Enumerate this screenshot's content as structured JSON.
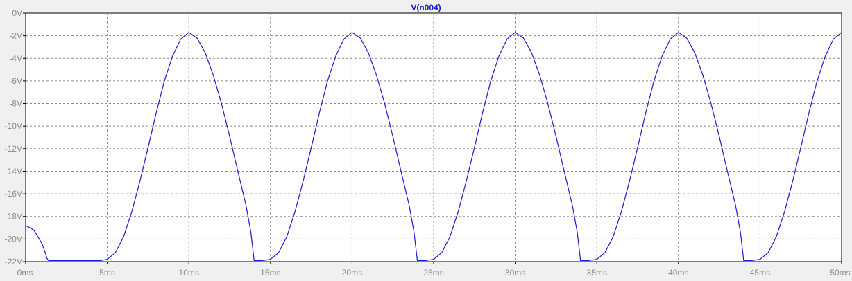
{
  "chart_data": {
    "type": "line",
    "title": "V(n004)",
    "xlabel": "",
    "ylabel": "",
    "xlim": [
      0,
      50
    ],
    "ylim": [
      -22,
      0
    ],
    "grid": true,
    "x_ticks": [
      "0ms",
      "5ms",
      "10ms",
      "15ms",
      "20ms",
      "25ms",
      "30ms",
      "35ms",
      "40ms",
      "45ms",
      "50ms"
    ],
    "y_ticks": [
      "0V",
      "-2V",
      "-4V",
      "-6V",
      "-8V",
      "-10V",
      "-12V",
      "-14V",
      "-16V",
      "-18V",
      "-20V",
      "-22V"
    ],
    "colors": {
      "series": "#1a1ad0",
      "background": "#ffffff",
      "grid": "#8a8a8a"
    },
    "series": [
      {
        "name": "V(n004)",
        "x": [
          0,
          0.5,
          1.0,
          1.2,
          1.3,
          1.4,
          4.6,
          5.0,
          5.5,
          6.0,
          6.5,
          7.0,
          7.5,
          8.0,
          8.5,
          9.0,
          9.5,
          10.0,
          10.5,
          11.0,
          11.5,
          12.0,
          12.5,
          13.0,
          13.5,
          13.8,
          14.0,
          14.5,
          15.0,
          15.5,
          16.0,
          16.5,
          17.0,
          17.5,
          18.0,
          18.5,
          19.0,
          19.5,
          20.0,
          20.5,
          21.0,
          21.5,
          22.0,
          22.5,
          23.0,
          23.5,
          23.8,
          24.0,
          24.5,
          25.0,
          25.5,
          26.0,
          26.5,
          27.0,
          27.5,
          28.0,
          28.5,
          29.0,
          29.5,
          30.0,
          30.5,
          31.0,
          31.5,
          32.0,
          32.5,
          33.0,
          33.5,
          33.8,
          34.0,
          34.5,
          35.0,
          35.5,
          36.0,
          36.5,
          37.0,
          37.5,
          38.0,
          38.5,
          39.0,
          39.5,
          40.0,
          40.5,
          41.0,
          41.5,
          42.0,
          42.5,
          43.0,
          43.5,
          43.8,
          44.0,
          44.5,
          45.0,
          45.5,
          46.0,
          46.5,
          47.0,
          47.5,
          48.0,
          48.5,
          49.0,
          49.5,
          50.0
        ],
        "values": [
          -18.8,
          -19.2,
          -20.4,
          -21.2,
          -21.7,
          -21.9,
          -21.9,
          -21.8,
          -21.2,
          -19.8,
          -17.6,
          -14.9,
          -11.9,
          -8.8,
          -6.0,
          -3.8,
          -2.3,
          -1.7,
          -2.2,
          -3.5,
          -5.5,
          -8.0,
          -10.9,
          -14.0,
          -17.0,
          -19.4,
          -21.9,
          -21.9,
          -21.8,
          -21.2,
          -19.8,
          -17.6,
          -14.9,
          -11.9,
          -8.8,
          -6.0,
          -3.8,
          -2.3,
          -1.7,
          -2.2,
          -3.5,
          -5.5,
          -8.0,
          -10.9,
          -14.0,
          -17.0,
          -19.4,
          -21.9,
          -21.9,
          -21.8,
          -21.2,
          -19.8,
          -17.6,
          -14.9,
          -11.9,
          -8.8,
          -6.0,
          -3.8,
          -2.3,
          -1.7,
          -2.2,
          -3.5,
          -5.5,
          -8.0,
          -10.9,
          -14.0,
          -17.0,
          -19.4,
          -21.9,
          -21.9,
          -21.8,
          -21.2,
          -19.8,
          -17.6,
          -14.9,
          -11.9,
          -8.8,
          -6.0,
          -3.8,
          -2.3,
          -1.7,
          -2.2,
          -3.5,
          -5.5,
          -8.0,
          -10.9,
          -14.0,
          -17.0,
          -19.4,
          -21.9,
          -21.9,
          -21.8,
          -21.2,
          -19.8,
          -17.6,
          -14.9,
          -11.9,
          -8.8,
          -6.0,
          -3.8,
          -2.3,
          -1.7
        ]
      }
    ]
  }
}
